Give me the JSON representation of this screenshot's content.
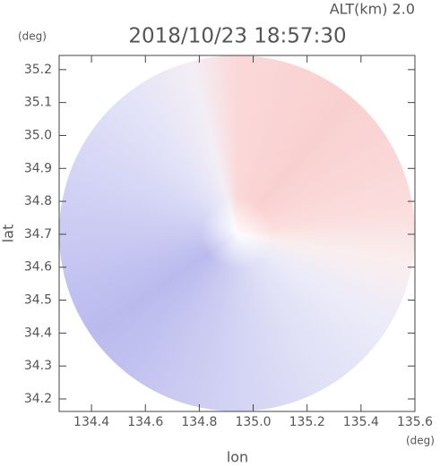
{
  "chart_data": {
    "type": "map",
    "title": "2018/10/23 18:57:30",
    "annotation": "ALT(km)  2.0",
    "x_label": "lon",
    "y_label": "lat",
    "x_unit": "(deg)",
    "y_unit": "(deg)",
    "xlim": [
      134.28,
      135.6
    ],
    "ylim": [
      34.162,
      35.243
    ],
    "xticks": [
      134.4,
      134.6,
      134.8,
      {
        "value": 135,
        "label": "135.0"
      },
      135.2,
      135.4,
      135.6
    ],
    "yticks": [
      34.2,
      34.3,
      34.4,
      34.5,
      34.6,
      34.7,
      34.8,
      34.9,
      {
        "value": 35,
        "label": "35.0"
      },
      35.1,
      35.2
    ]
  }
}
